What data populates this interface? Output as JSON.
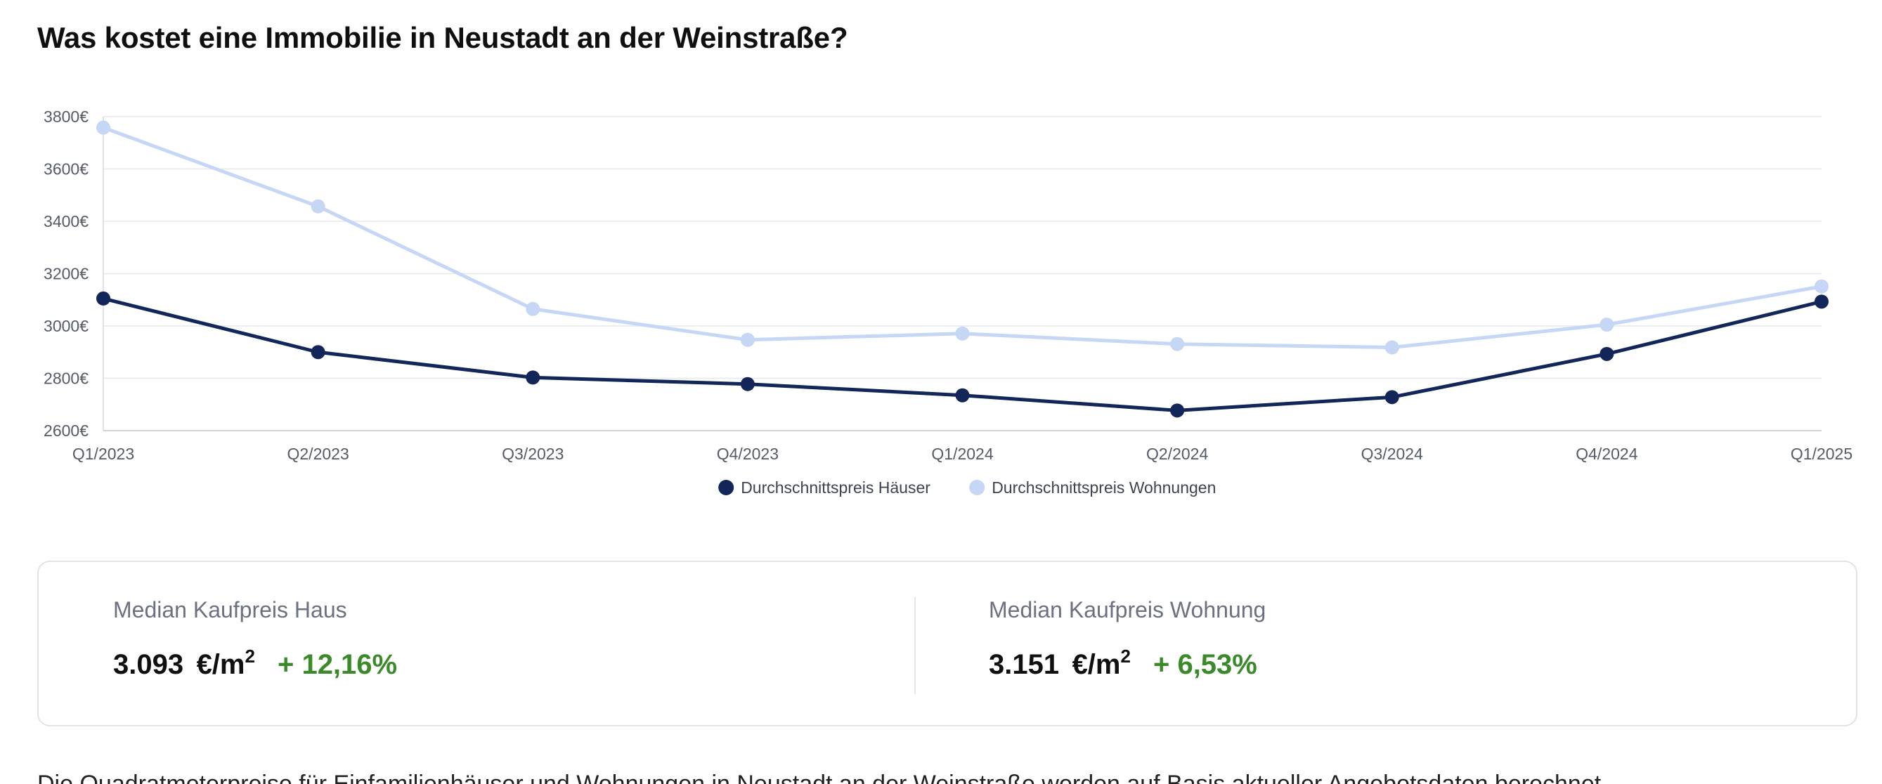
{
  "page": {
    "title": "Was kostet eine Immobilie in Neustadt an der Weinstraße?"
  },
  "chart_data": {
    "type": "line",
    "title": "",
    "xlabel": "",
    "ylabel": "",
    "categories": [
      "Q1/2023",
      "Q2/2023",
      "Q3/2023",
      "Q4/2023",
      "Q1/2024",
      "Q2/2024",
      "Q3/2024",
      "Q4/2024",
      "Q1/2025"
    ],
    "ylim": [
      2600,
      3800
    ],
    "yticks": [
      2600,
      2800,
      3000,
      3200,
      3400,
      3600,
      3800
    ],
    "ytick_suffix": "€",
    "grid": true,
    "legend_position": "bottom-center",
    "series": [
      {
        "name": "Durchschnittspreis Häuser",
        "color": "#12265a",
        "values": [
          3105,
          2900,
          2803,
          2778,
          2735,
          2677,
          2728,
          2893,
          3093
        ]
      },
      {
        "name": "Durchschnittspreis Wohnungen",
        "color": "#c5d7f5",
        "values": [
          3758,
          3457,
          3065,
          2947,
          2971,
          2931,
          2918,
          3005,
          3151
        ]
      }
    ]
  },
  "stats": {
    "house": {
      "label": "Median Kaufpreis Haus",
      "value": "3.093",
      "unit": "€/m",
      "unit_sup": "2",
      "change": "+ 12,16%"
    },
    "apartment": {
      "label": "Median Kaufpreis Wohnung",
      "value": "3.151",
      "unit": "€/m",
      "unit_sup": "2",
      "change": "+ 6,53%"
    },
    "change_color": "#3b8a2a"
  },
  "footer": {
    "partial_text": "Die Quadratmeterpreise für Einfamilienhäuser und Wohnungen in Neustadt an der Weinstraße werden auf Basis aktueller Angebotsdaten berechnet."
  }
}
